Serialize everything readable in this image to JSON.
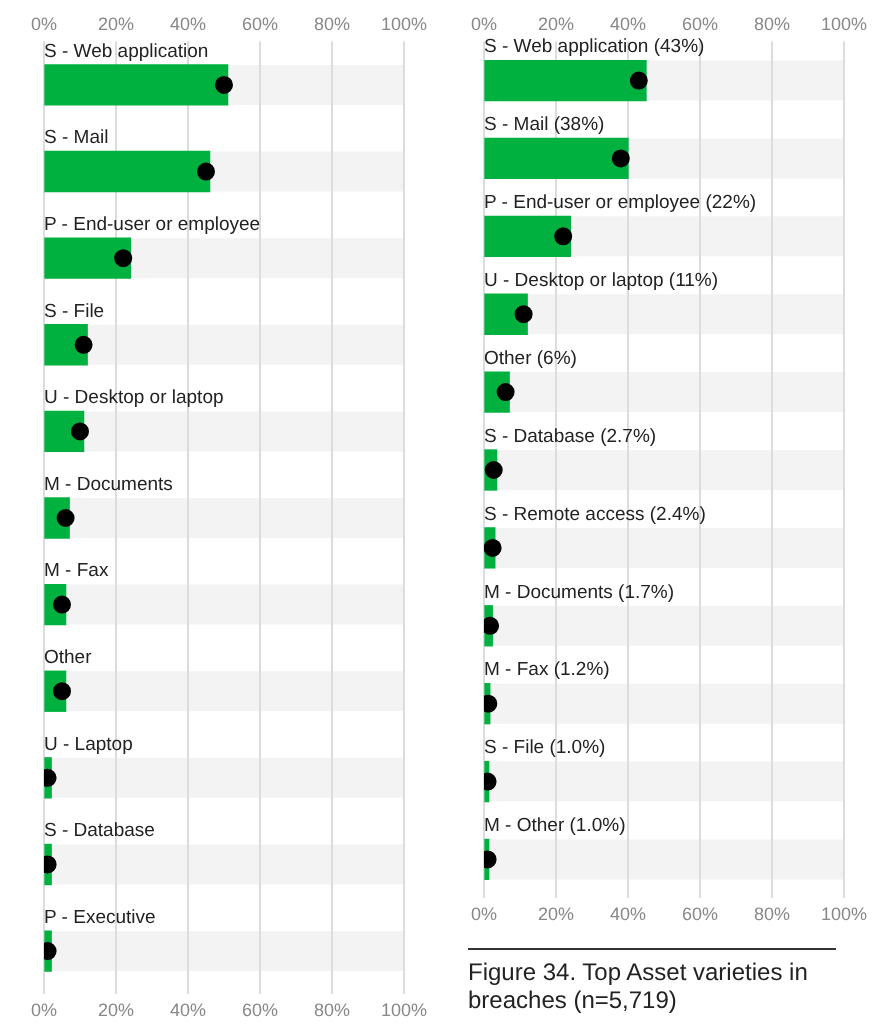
{
  "chart_data": [
    {
      "type": "bar",
      "orientation": "horizontal",
      "categories": [
        "S - Web application",
        "S - Mail",
        "P - End-user or employee",
        "S - File",
        "U - Desktop or laptop",
        "M - Documents",
        "M - Fax",
        "Other",
        "U - Laptop",
        "S - Database",
        "P - Executive"
      ],
      "series": [
        {
          "color": "#00b140",
          "values": [
            51,
            46,
            24,
            12,
            11,
            7,
            6,
            6,
            2,
            2,
            2
          ]
        },
        {
          "type": "scatter",
          "color": "#000000",
          "values": [
            50,
            45,
            22,
            11,
            10,
            6,
            5,
            5,
            1,
            1,
            1
          ]
        }
      ],
      "xlim": [
        0,
        100
      ],
      "xticks": [
        {
          "value": 0,
          "label": "0%"
        },
        {
          "value": 20,
          "label": "20%"
        },
        {
          "value": 40,
          "label": "40%"
        },
        {
          "value": 60,
          "label": "60%"
        },
        {
          "value": 80,
          "label": "80%"
        },
        {
          "value": 100,
          "label": "100%"
        }
      ],
      "x2lim": [
        0,
        100
      ],
      "x2ticks": [
        {
          "value": 0,
          "label": "0%"
        },
        {
          "value": 20,
          "label": "20%"
        },
        {
          "value": 40,
          "label": "40%"
        },
        {
          "value": 60,
          "label": "60%"
        },
        {
          "value": 80,
          "label": "80%"
        },
        {
          "value": 100,
          "label": "100%"
        }
      ],
      "grid": "x",
      "legend": false,
      "marker": "circle"
    },
    {
      "type": "bar",
      "orientation": "horizontal",
      "categories": [
        "S - Web application (43%)",
        "S - Mail (38%)",
        "P - End-user or employee (22%)",
        "U - Desktop or laptop (11%)",
        "Other (6%)",
        "S - Database (2.7%)",
        "S - Remote access (2.4%)",
        "M - Documents (1.7%)",
        "M - Fax (1.2%)",
        "S - File (1.0%)",
        "M - Other (1.0%)"
      ],
      "series": [
        {
          "color": "#00b140",
          "values": [
            45,
            40,
            24,
            12,
            7,
            3.5,
            3,
            2.3,
            1.6,
            1.3,
            1.3
          ]
        },
        {
          "type": "scatter",
          "color": "#000000",
          "values": [
            43,
            38,
            22,
            11,
            6,
            2.7,
            2.4,
            1.7,
            1.2,
            1.0,
            1.0
          ]
        }
      ],
      "xlim": [
        0,
        100
      ],
      "xticks": [
        {
          "value": 0,
          "label": "0%"
        },
        {
          "value": 20,
          "label": "20%"
        },
        {
          "value": 40,
          "label": "40%"
        },
        {
          "value": 60,
          "label": "60%"
        },
        {
          "value": 80,
          "label": "80%"
        },
        {
          "value": 100,
          "label": "100%"
        }
      ],
      "x2lim": [
        0,
        100
      ],
      "x2ticks": [
        {
          "value": 0,
          "label": "0%"
        },
        {
          "value": 20,
          "label": "20%"
        },
        {
          "value": 40,
          "label": "40%"
        },
        {
          "value": 60,
          "label": "60%"
        },
        {
          "value": 80,
          "label": "80%"
        },
        {
          "value": 100,
          "label": "100%"
        }
      ],
      "grid": "x",
      "legend": false,
      "marker": "circle",
      "annotations": [
        "Figure 34. Top Asset varieties in breaches (n=5,719)"
      ]
    }
  ]
}
